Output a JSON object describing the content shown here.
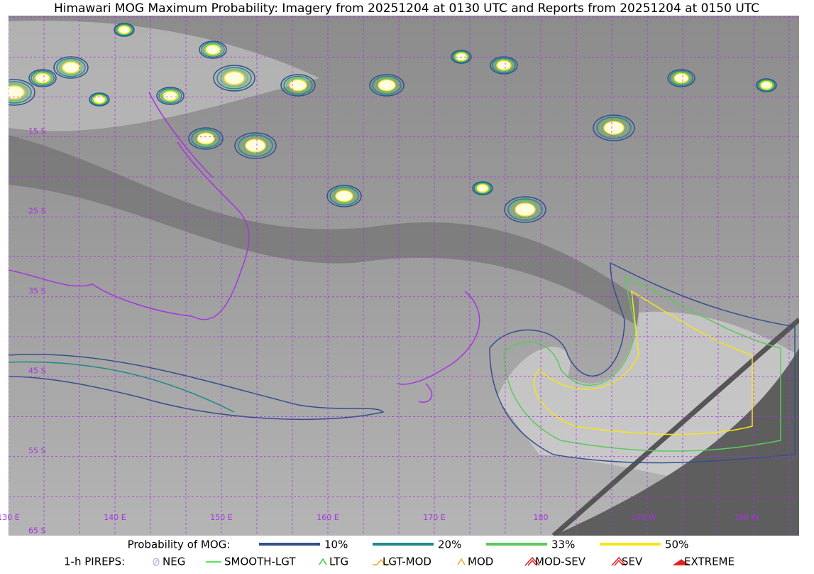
{
  "title": "Himawari MOG Maximum Probability: Imagery from 20251204 at 0130 UTC and Reports from 20251204 at 0150 UTC",
  "map": {
    "lat_labels": [
      "15 S",
      "25 S",
      "35 S",
      "45 S",
      "55 S",
      "65 S"
    ],
    "lon_labels": [
      "130 E",
      "140 E",
      "150 E",
      "160 E",
      "170 E",
      "180",
      "170 W",
      "160 W"
    ]
  },
  "legend": {
    "probability": {
      "label": "Probability of MOG:",
      "items": [
        {
          "label": "10%",
          "color": "#34508a"
        },
        {
          "label": "20%",
          "color": "#1f8a8a"
        },
        {
          "label": "33%",
          "color": "#5cc95c"
        },
        {
          "label": "50%",
          "color": "#f5e61c"
        }
      ]
    },
    "pireps": {
      "label": "1-h PIREPS:",
      "items": [
        {
          "label": "NEG",
          "color": "#b9b9f0",
          "symbol": "neg"
        },
        {
          "label": "SMOOTH-LGT",
          "color": "#2fd52f",
          "symbol": "line"
        },
        {
          "label": "LTG",
          "color": "#2fd52f",
          "symbol": "caret"
        },
        {
          "label": "LGT-MOD",
          "color": "#f5a623",
          "symbol": "hat"
        },
        {
          "label": "MOD",
          "color": "#f5a623",
          "symbol": "caret"
        },
        {
          "label": "MOD-SEV",
          "color": "#e52020",
          "symbol": "hat2"
        },
        {
          "label": "SEV",
          "color": "#e52020",
          "symbol": "caret2"
        },
        {
          "label": "EXTREME",
          "color": "#e52020",
          "symbol": "solid"
        }
      ]
    }
  }
}
